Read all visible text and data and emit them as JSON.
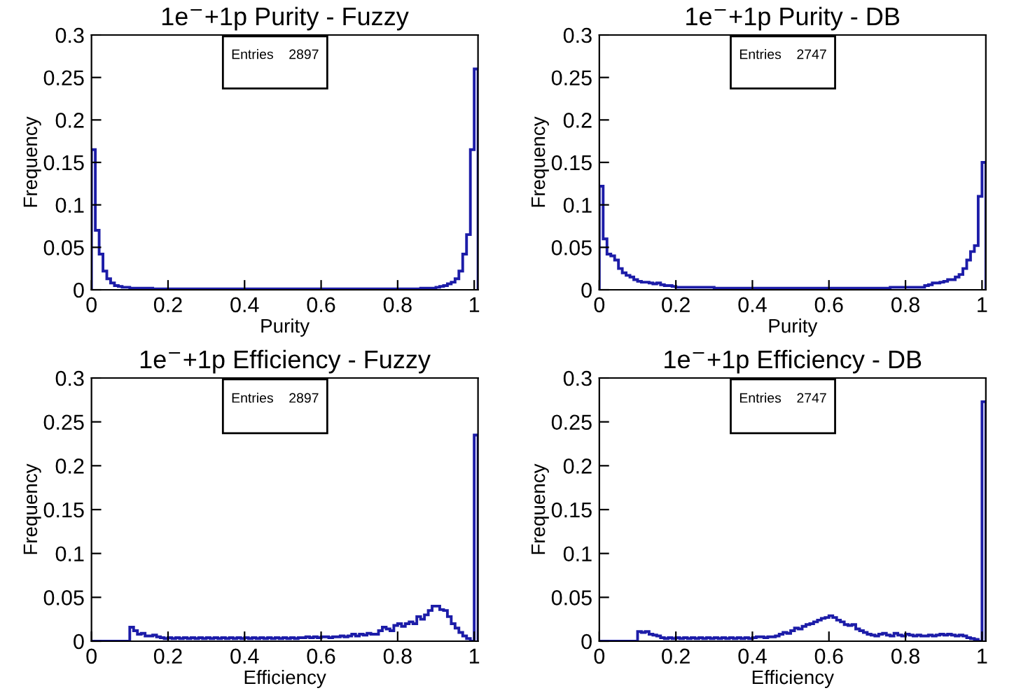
{
  "chart_data": [
    {
      "type": "histogram",
      "title": "1e$^{−}$+1p Purity - Fuzzy",
      "xlabel": "Purity",
      "ylabel": "Frequency",
      "annotations": [
        "Entries    2897"
      ],
      "color": "#1c1ca8",
      "xlim": [
        0,
        1.01
      ],
      "ylim": [
        0,
        0.3
      ],
      "xticks": [
        0,
        0.2,
        0.4,
        0.6,
        0.8,
        1
      ],
      "yticks": [
        0,
        0.05,
        0.1,
        0.15,
        0.2,
        0.25,
        0.3
      ],
      "grid": false,
      "bins": [
        0,
        0.01,
        0.02,
        0.03,
        0.04,
        0.05,
        0.06,
        0.07,
        0.08,
        0.09,
        0.1,
        0.11,
        0.12,
        0.13,
        0.14,
        0.15,
        0.16,
        0.17,
        0.18,
        0.19,
        0.2,
        0.21,
        0.22,
        0.23,
        0.24,
        0.25,
        0.26,
        0.27,
        0.28,
        0.29,
        0.3,
        0.31,
        0.32,
        0.33,
        0.34,
        0.35,
        0.36,
        0.37,
        0.38,
        0.39,
        0.4,
        0.41,
        0.42,
        0.43,
        0.44,
        0.45,
        0.46,
        0.47,
        0.48,
        0.49,
        0.5,
        0.51,
        0.52,
        0.53,
        0.54,
        0.55,
        0.56,
        0.57,
        0.58,
        0.59,
        0.6,
        0.61,
        0.62,
        0.63,
        0.64,
        0.65,
        0.66,
        0.67,
        0.68,
        0.69,
        0.7,
        0.71,
        0.72,
        0.73,
        0.74,
        0.75,
        0.76,
        0.77,
        0.78,
        0.79,
        0.8,
        0.81,
        0.82,
        0.83,
        0.84,
        0.85,
        0.86,
        0.87,
        0.88,
        0.89,
        0.9,
        0.91,
        0.92,
        0.93,
        0.94,
        0.95,
        0.96,
        0.97,
        0.98,
        0.99,
        1,
        1.01
      ],
      "values": [
        0.165,
        0.07,
        0.042,
        0.022,
        0.013,
        0.008,
        0.005,
        0.004,
        0.003,
        0.003,
        0.002,
        0.002,
        0.002,
        0.002,
        0.002,
        0.002,
        0.001,
        0.001,
        0.001,
        0.001,
        0.001,
        0.001,
        0.001,
        0.001,
        0.001,
        0.001,
        0.001,
        0.001,
        0.001,
        0.001,
        0.001,
        0.001,
        0.001,
        0.001,
        0.001,
        0.001,
        0.001,
        0.001,
        0.001,
        0.001,
        0.001,
        0.001,
        0.001,
        0.001,
        0.001,
        0.001,
        0.001,
        0.001,
        0.001,
        0.001,
        0.001,
        0.001,
        0.001,
        0.001,
        0.001,
        0.001,
        0.001,
        0.001,
        0.001,
        0.001,
        0.001,
        0.001,
        0.001,
        0.001,
        0.001,
        0.001,
        0.001,
        0.001,
        0.001,
        0.001,
        0.001,
        0.001,
        0.001,
        0.001,
        0.001,
        0.001,
        0.001,
        0.001,
        0.001,
        0.001,
        0.001,
        0.001,
        0.001,
        0.001,
        0.001,
        0.001,
        0.002,
        0.002,
        0.002,
        0.002,
        0.003,
        0.004,
        0.005,
        0.007,
        0.009,
        0.013,
        0.022,
        0.042,
        0.065,
        0.165,
        0.26
      ]
    },
    {
      "type": "histogram",
      "title": "1e$^{−}$+1p Purity - DB",
      "xlabel": "Purity",
      "ylabel": "Frequency",
      "annotations": [
        "Entries    2747"
      ],
      "color": "#1c1ca8",
      "xlim": [
        0,
        1.01
      ],
      "ylim": [
        0,
        0.3
      ],
      "xticks": [
        0,
        0.2,
        0.4,
        0.6,
        0.8,
        1
      ],
      "yticks": [
        0,
        0.05,
        0.1,
        0.15,
        0.2,
        0.25,
        0.3
      ],
      "grid": false,
      "bins": [
        0,
        0.01,
        0.02,
        0.03,
        0.04,
        0.05,
        0.06,
        0.07,
        0.08,
        0.09,
        0.1,
        0.11,
        0.12,
        0.13,
        0.14,
        0.15,
        0.16,
        0.17,
        0.18,
        0.19,
        0.2,
        0.21,
        0.22,
        0.23,
        0.24,
        0.25,
        0.26,
        0.27,
        0.28,
        0.29,
        0.3,
        0.31,
        0.32,
        0.33,
        0.34,
        0.35,
        0.36,
        0.37,
        0.38,
        0.39,
        0.4,
        0.41,
        0.42,
        0.43,
        0.44,
        0.45,
        0.46,
        0.47,
        0.48,
        0.49,
        0.5,
        0.51,
        0.52,
        0.53,
        0.54,
        0.55,
        0.56,
        0.57,
        0.58,
        0.59,
        0.6,
        0.61,
        0.62,
        0.63,
        0.64,
        0.65,
        0.66,
        0.67,
        0.68,
        0.69,
        0.7,
        0.71,
        0.72,
        0.73,
        0.74,
        0.75,
        0.76,
        0.77,
        0.78,
        0.79,
        0.8,
        0.81,
        0.82,
        0.83,
        0.84,
        0.85,
        0.86,
        0.87,
        0.88,
        0.89,
        0.9,
        0.91,
        0.92,
        0.93,
        0.94,
        0.95,
        0.96,
        0.97,
        0.98,
        0.99,
        1,
        1.01
      ],
      "values": [
        0.122,
        0.06,
        0.042,
        0.04,
        0.035,
        0.025,
        0.02,
        0.017,
        0.015,
        0.012,
        0.01,
        0.009,
        0.009,
        0.008,
        0.007,
        0.008,
        0.006,
        0.005,
        0.005,
        0.004,
        0.003,
        0.003,
        0.003,
        0.003,
        0.003,
        0.003,
        0.003,
        0.003,
        0.003,
        0.003,
        0.002,
        0.002,
        0.002,
        0.002,
        0.002,
        0.002,
        0.002,
        0.002,
        0.002,
        0.002,
        0.002,
        0.002,
        0.002,
        0.002,
        0.002,
        0.002,
        0.002,
        0.002,
        0.002,
        0.002,
        0.002,
        0.002,
        0.002,
        0.002,
        0.002,
        0.002,
        0.002,
        0.002,
        0.002,
        0.002,
        0.002,
        0.002,
        0.002,
        0.002,
        0.002,
        0.002,
        0.002,
        0.002,
        0.002,
        0.002,
        0.002,
        0.002,
        0.002,
        0.002,
        0.002,
        0.002,
        0.003,
        0.003,
        0.003,
        0.003,
        0.003,
        0.003,
        0.003,
        0.003,
        0.003,
        0.005,
        0.006,
        0.008,
        0.008,
        0.009,
        0.01,
        0.012,
        0.012,
        0.015,
        0.018,
        0.025,
        0.035,
        0.045,
        0.052,
        0.11,
        0.15
      ]
    },
    {
      "type": "histogram",
      "title": "1e$^{−}$+1p Efficiency - Fuzzy",
      "xlabel": "Efficiency",
      "ylabel": "Frequency",
      "annotations": [
        "Entries    2897"
      ],
      "color": "#1c1ca8",
      "xlim": [
        0,
        1.01
      ],
      "ylim": [
        0,
        0.3
      ],
      "xticks": [
        0,
        0.2,
        0.4,
        0.6,
        0.8,
        1
      ],
      "yticks": [
        0,
        0.05,
        0.1,
        0.15,
        0.2,
        0.25,
        0.3
      ],
      "grid": false,
      "bins": [
        0,
        0.01,
        0.02,
        0.03,
        0.04,
        0.05,
        0.06,
        0.07,
        0.08,
        0.09,
        0.1,
        0.11,
        0.12,
        0.13,
        0.14,
        0.15,
        0.16,
        0.17,
        0.18,
        0.19,
        0.2,
        0.21,
        0.22,
        0.23,
        0.24,
        0.25,
        0.26,
        0.27,
        0.28,
        0.29,
        0.3,
        0.31,
        0.32,
        0.33,
        0.34,
        0.35,
        0.36,
        0.37,
        0.38,
        0.39,
        0.4,
        0.41,
        0.42,
        0.43,
        0.44,
        0.45,
        0.46,
        0.47,
        0.48,
        0.49,
        0.5,
        0.51,
        0.52,
        0.53,
        0.54,
        0.55,
        0.56,
        0.57,
        0.58,
        0.59,
        0.6,
        0.61,
        0.62,
        0.63,
        0.64,
        0.65,
        0.66,
        0.67,
        0.68,
        0.69,
        0.7,
        0.71,
        0.72,
        0.73,
        0.74,
        0.75,
        0.76,
        0.77,
        0.78,
        0.79,
        0.8,
        0.81,
        0.82,
        0.83,
        0.84,
        0.85,
        0.86,
        0.87,
        0.88,
        0.89,
        0.9,
        0.91,
        0.92,
        0.93,
        0.94,
        0.95,
        0.96,
        0.97,
        0.98,
        0.99,
        1,
        1.01
      ],
      "values": [
        0,
        0,
        0,
        0,
        0,
        0,
        0,
        0,
        0,
        0,
        0.016,
        0.012,
        0.008,
        0.009,
        0.006,
        0.006,
        0.007,
        0.005,
        0.004,
        0.003,
        0.004,
        0.003,
        0.004,
        0.003,
        0.004,
        0.003,
        0.004,
        0.003,
        0.004,
        0.003,
        0.004,
        0.003,
        0.004,
        0.003,
        0.004,
        0.003,
        0.004,
        0.003,
        0.004,
        0.003,
        0.004,
        0.003,
        0.004,
        0.003,
        0.004,
        0.003,
        0.004,
        0.003,
        0.004,
        0.003,
        0.004,
        0.003,
        0.004,
        0.003,
        0.004,
        0.004,
        0.005,
        0.004,
        0.005,
        0.004,
        0.005,
        0.005,
        0.004,
        0.005,
        0.005,
        0.006,
        0.005,
        0.006,
        0.008,
        0.006,
        0.008,
        0.007,
        0.009,
        0.008,
        0.008,
        0.012,
        0.016,
        0.014,
        0.012,
        0.018,
        0.02,
        0.017,
        0.02,
        0.022,
        0.02,
        0.028,
        0.025,
        0.03,
        0.035,
        0.04,
        0.04,
        0.036,
        0.035,
        0.028,
        0.02,
        0.015,
        0.01,
        0.006,
        0.003,
        0,
        0.235
      ]
    },
    {
      "type": "histogram",
      "title": "1e$^{−}$+1p Efficiency - DB",
      "xlabel": "Efficiency",
      "ylabel": "Frequency",
      "annotations": [
        "Entries    2747"
      ],
      "color": "#1c1ca8",
      "xlim": [
        0,
        1.01
      ],
      "ylim": [
        0,
        0.3
      ],
      "xticks": [
        0,
        0.2,
        0.4,
        0.6,
        0.8,
        1
      ],
      "yticks": [
        0,
        0.05,
        0.1,
        0.15,
        0.2,
        0.25,
        0.3
      ],
      "grid": false,
      "bins": [
        0,
        0.01,
        0.02,
        0.03,
        0.04,
        0.05,
        0.06,
        0.07,
        0.08,
        0.09,
        0.1,
        0.11,
        0.12,
        0.13,
        0.14,
        0.15,
        0.16,
        0.17,
        0.18,
        0.19,
        0.2,
        0.21,
        0.22,
        0.23,
        0.24,
        0.25,
        0.26,
        0.27,
        0.28,
        0.29,
        0.3,
        0.31,
        0.32,
        0.33,
        0.34,
        0.35,
        0.36,
        0.37,
        0.38,
        0.39,
        0.4,
        0.41,
        0.42,
        0.43,
        0.44,
        0.45,
        0.46,
        0.47,
        0.48,
        0.49,
        0.5,
        0.51,
        0.52,
        0.53,
        0.54,
        0.55,
        0.56,
        0.57,
        0.58,
        0.59,
        0.6,
        0.61,
        0.62,
        0.63,
        0.64,
        0.65,
        0.66,
        0.67,
        0.68,
        0.69,
        0.7,
        0.71,
        0.72,
        0.73,
        0.74,
        0.75,
        0.76,
        0.77,
        0.78,
        0.79,
        0.8,
        0.81,
        0.82,
        0.83,
        0.84,
        0.85,
        0.86,
        0.87,
        0.88,
        0.89,
        0.9,
        0.91,
        0.92,
        0.93,
        0.94,
        0.95,
        0.96,
        0.97,
        0.98,
        0.99,
        1,
        1.01
      ],
      "values": [
        0,
        0,
        0,
        0,
        0,
        0,
        0,
        0,
        0,
        0,
        0.011,
        0.01,
        0.011,
        0.008,
        0.007,
        0.006,
        0.004,
        0.003,
        0.004,
        0.003,
        0.004,
        0.003,
        0.004,
        0.003,
        0.004,
        0.003,
        0.004,
        0.003,
        0.004,
        0.003,
        0.004,
        0.003,
        0.004,
        0.003,
        0.004,
        0.003,
        0.004,
        0.003,
        0.004,
        0.003,
        0.004,
        0.005,
        0.005,
        0.004,
        0.005,
        0.005,
        0.006,
        0.008,
        0.01,
        0.009,
        0.012,
        0.015,
        0.014,
        0.017,
        0.019,
        0.02,
        0.022,
        0.024,
        0.026,
        0.027,
        0.029,
        0.027,
        0.024,
        0.022,
        0.019,
        0.018,
        0.019,
        0.014,
        0.012,
        0.01,
        0.008,
        0.007,
        0.006,
        0.008,
        0.009,
        0.007,
        0.006,
        0.009,
        0.007,
        0.006,
        0.008,
        0.007,
        0.006,
        0.007,
        0.006,
        0.006,
        0.007,
        0.006,
        0.007,
        0.008,
        0.007,
        0.008,
        0.007,
        0.006,
        0.007,
        0.006,
        0.004,
        0.003,
        0.002,
        0,
        0.273
      ]
    }
  ]
}
